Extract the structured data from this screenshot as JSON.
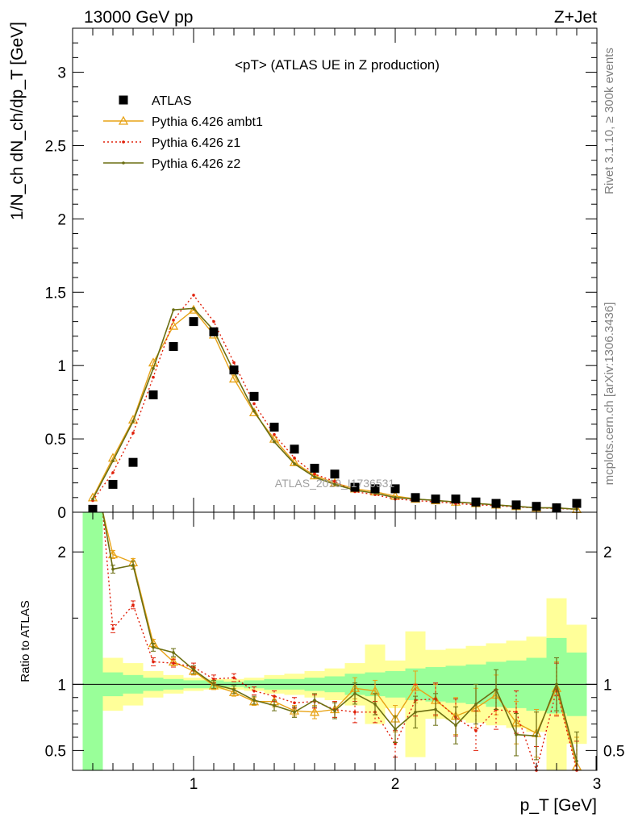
{
  "header": {
    "left": "13000 GeV pp",
    "right": "Z+Jet"
  },
  "side_labels": {
    "rivet": "Rivet 3.1.10, ≥ 300k events",
    "mcplots": "mcplots.cern.ch [arXiv:1306.3436]"
  },
  "watermark": "ATLAS_2019_I1736531",
  "colors": {
    "atlas": "#000000",
    "ambt1": "#e8a317",
    "z1": "#e0200a",
    "z2": "#6b6e12",
    "band_inner": "#99ff99",
    "band_outer": "#ffff99"
  },
  "chart_data": [
    {
      "type": "scatter",
      "title": "<pT> (ATLAS UE in Z production)",
      "xlabel": "p_T [GeV]",
      "ylabel": "1/N_ch dN_ch/dp_T [GeV]",
      "xlim": [
        0.4,
        3.0
      ],
      "ylim": [
        0,
        3.3
      ],
      "yticks": [
        "0",
        "0.5",
        "1",
        "1.5",
        "2",
        "2.5",
        "3"
      ],
      "legend_position": "top-left",
      "x": [
        0.5,
        0.6,
        0.7,
        0.8,
        0.9,
        1.0,
        1.1,
        1.2,
        1.3,
        1.4,
        1.5,
        1.6,
        1.7,
        1.8,
        1.9,
        2.0,
        2.1,
        2.2,
        2.3,
        2.4,
        2.5,
        2.6,
        2.7,
        2.8,
        2.9
      ],
      "series": [
        {
          "name": "ATLAS",
          "style": "markers",
          "values": [
            0.02,
            0.19,
            0.34,
            0.8,
            1.13,
            1.3,
            1.23,
            0.97,
            0.79,
            0.58,
            0.43,
            0.3,
            0.26,
            0.17,
            0.16,
            0.16,
            0.1,
            0.09,
            0.09,
            0.07,
            0.06,
            0.05,
            0.04,
            0.03,
            0.06
          ]
        },
        {
          "name": "Pythia 6.426 ambt1",
          "style": "solid-triangle",
          "values": [
            0.1,
            0.37,
            0.63,
            1.02,
            1.27,
            1.38,
            1.21,
            0.91,
            0.68,
            0.5,
            0.34,
            0.25,
            0.2,
            0.16,
            0.14,
            0.11,
            0.09,
            0.08,
            0.07,
            0.06,
            0.05,
            0.04,
            0.03,
            0.03,
            0.02
          ]
        },
        {
          "name": "Pythia 6.426 z1",
          "style": "dotted",
          "values": [
            0.08,
            0.27,
            0.54,
            0.92,
            1.31,
            1.48,
            1.3,
            1.02,
            0.74,
            0.53,
            0.37,
            0.26,
            0.21,
            0.14,
            0.12,
            0.09,
            0.08,
            0.07,
            0.06,
            0.05,
            0.045,
            0.035,
            0.03,
            0.025,
            0.02
          ]
        },
        {
          "name": "Pythia 6.426 z2",
          "style": "solid-line",
          "values": [
            0.09,
            0.35,
            0.62,
            0.98,
            1.38,
            1.39,
            1.24,
            0.96,
            0.69,
            0.48,
            0.33,
            0.24,
            0.19,
            0.15,
            0.13,
            0.1,
            0.09,
            0.08,
            0.07,
            0.06,
            0.05,
            0.04,
            0.03,
            0.03,
            0.02
          ]
        }
      ]
    },
    {
      "type": "line",
      "xlabel": "p_T [GeV]",
      "ylabel": "Ratio to ATLAS",
      "xlim": [
        0.4,
        3.0
      ],
      "ylim": [
        0.35,
        2.3
      ],
      "xticks": [
        "1",
        "2",
        "3"
      ],
      "yticks": [
        "0.5",
        "1",
        "2"
      ],
      "x": [
        0.6,
        0.7,
        0.8,
        0.9,
        1.0,
        1.1,
        1.2,
        1.3,
        1.4,
        1.5,
        1.6,
        1.7,
        1.8,
        1.9,
        2.0,
        2.1,
        2.2,
        2.3,
        2.4,
        2.5,
        2.6,
        2.7,
        2.8,
        2.9
      ],
      "bin_edges": [
        0.45,
        0.55,
        0.65,
        0.75,
        0.85,
        0.95,
        1.05,
        1.15,
        1.25,
        1.35,
        1.45,
        1.55,
        1.65,
        1.75,
        1.85,
        1.95,
        2.05,
        2.15,
        2.25,
        2.35,
        2.45,
        2.55,
        2.65,
        2.75,
        2.85,
        2.95
      ],
      "band_inner": {
        "low": [
          0.35,
          0.91,
          0.93,
          0.95,
          0.96,
          0.97,
          0.97,
          0.98,
          0.97,
          0.96,
          0.96,
          0.95,
          0.94,
          0.92,
          0.91,
          0.9,
          0.88,
          0.87,
          0.86,
          0.85,
          0.83,
          0.82,
          0.8,
          0.78,
          0.76
        ],
        "high": [
          2.3,
          1.09,
          1.07,
          1.05,
          1.04,
          1.03,
          1.03,
          1.02,
          1.03,
          1.04,
          1.04,
          1.05,
          1.06,
          1.08,
          1.09,
          1.1,
          1.12,
          1.13,
          1.14,
          1.15,
          1.17,
          1.18,
          1.2,
          1.35,
          1.24
        ]
      },
      "band_outer": {
        "low": [
          0.35,
          0.8,
          0.84,
          0.9,
          0.93,
          0.95,
          0.96,
          0.96,
          0.95,
          0.93,
          0.92,
          0.9,
          0.88,
          0.84,
          0.7,
          0.82,
          0.45,
          0.74,
          0.73,
          0.71,
          0.69,
          0.67,
          0.64,
          0.35,
          0.55
        ],
        "high": [
          2.3,
          1.2,
          1.16,
          1.1,
          1.07,
          1.05,
          1.04,
          1.04,
          1.05,
          1.07,
          1.08,
          1.1,
          1.12,
          1.16,
          1.3,
          1.18,
          1.4,
          1.26,
          1.27,
          1.29,
          1.31,
          1.33,
          1.36,
          1.65,
          1.45
        ]
      },
      "series": [
        {
          "name": "Pythia 6.426 ambt1",
          "values": [
            1.98,
            1.92,
            1.31,
            1.17,
            1.1,
            0.99,
            0.94,
            0.87,
            0.87,
            0.8,
            0.79,
            0.81,
            0.97,
            0.95,
            0.74,
            0.98,
            0.88,
            0.76,
            0.82,
            0.92,
            0.71,
            0.63,
            0.97,
            0.38
          ],
          "err": [
            0.03,
            0.03,
            0.03,
            0.03,
            0.03,
            0.03,
            0.03,
            0.03,
            0.04,
            0.04,
            0.05,
            0.06,
            0.08,
            0.08,
            0.1,
            0.12,
            0.12,
            0.14,
            0.15,
            0.15,
            0.16,
            0.18,
            0.2,
            0.22
          ]
        },
        {
          "name": "Pythia 6.426 z1",
          "values": [
            1.42,
            1.6,
            1.17,
            1.16,
            1.13,
            1.04,
            1.05,
            0.95,
            0.91,
            0.86,
            0.87,
            0.81,
            0.79,
            0.79,
            0.55,
            0.88,
            0.89,
            0.75,
            0.65,
            0.81,
            0.79,
            0.35,
            0.96,
            0.35
          ],
          "err": [
            0.03,
            0.03,
            0.03,
            0.03,
            0.03,
            0.03,
            0.03,
            0.03,
            0.04,
            0.04,
            0.05,
            0.06,
            0.08,
            0.08,
            0.1,
            0.12,
            0.12,
            0.14,
            0.15,
            0.15,
            0.16,
            0.18,
            0.2,
            0.22
          ]
        },
        {
          "name": "Pythia 6.426 z2",
          "values": [
            1.87,
            1.9,
            1.28,
            1.24,
            1.11,
            1.0,
            0.96,
            0.88,
            0.84,
            0.79,
            0.88,
            0.8,
            0.93,
            0.85,
            0.66,
            0.79,
            0.81,
            0.69,
            0.85,
            0.96,
            0.62,
            0.61,
            1.0,
            0.42
          ],
          "err": [
            0.03,
            0.03,
            0.03,
            0.03,
            0.03,
            0.03,
            0.03,
            0.03,
            0.04,
            0.04,
            0.05,
            0.06,
            0.08,
            0.08,
            0.1,
            0.12,
            0.12,
            0.14,
            0.15,
            0.15,
            0.16,
            0.18,
            0.2,
            0.22
          ]
        }
      ]
    }
  ]
}
